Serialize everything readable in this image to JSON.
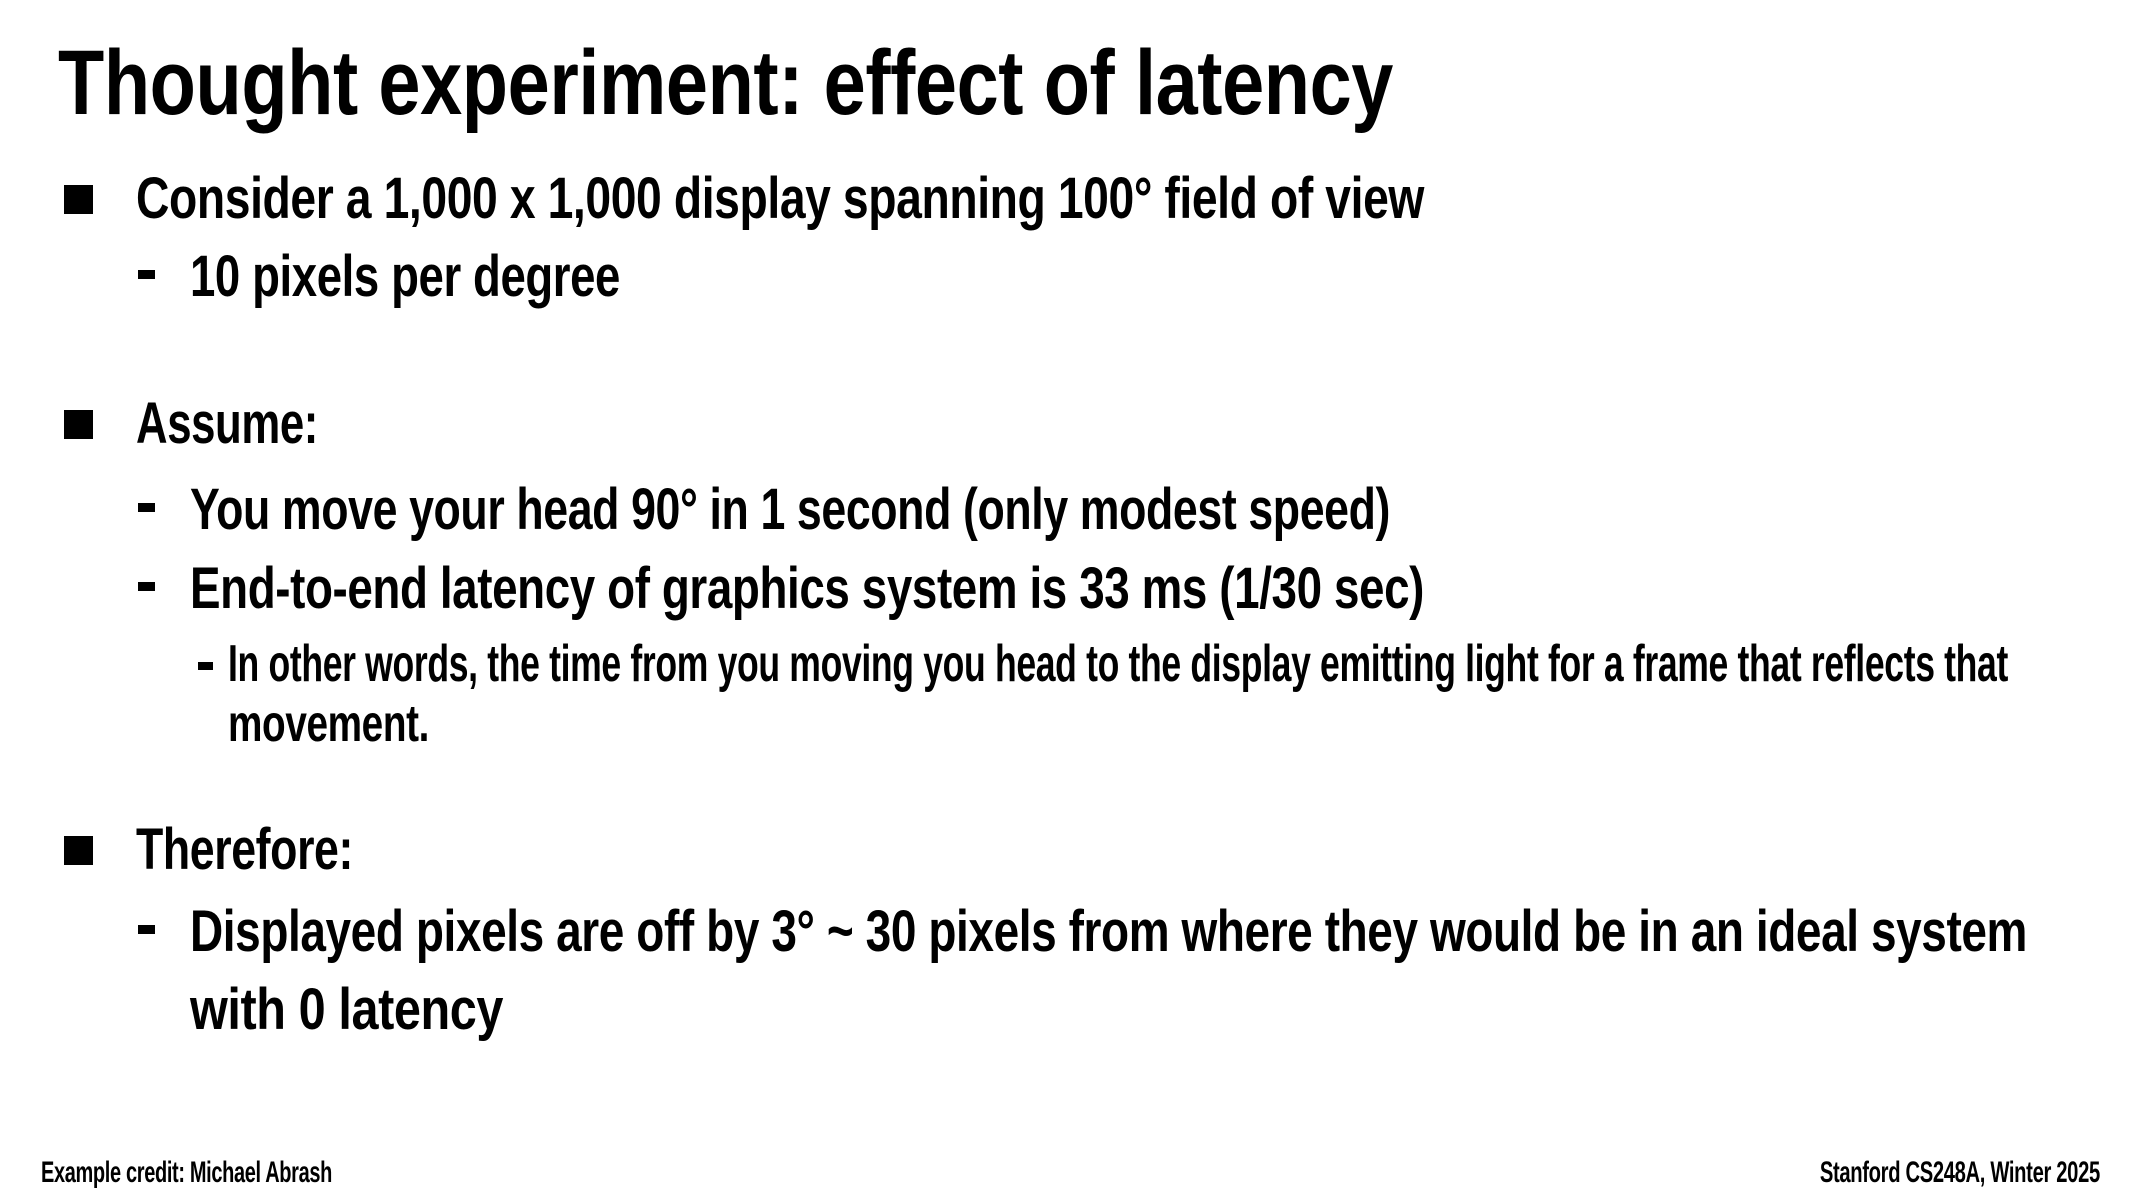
{
  "slide": {
    "title": "Thought experiment: effect of latency",
    "bullets": {
      "consider": "Consider a 1,000 x 1,000 display spanning 100° field of view",
      "pixels_per_degree": "10 pixels per degree",
      "assume": "Assume:",
      "head_move": "You move your head 90° in 1 second (only modest speed)",
      "latency": "End-to-end latency of graphics system is 33 ms (1/30 sec)",
      "in_other_words_line1": "In other words, the time from you moving you head to the display emitting light for a frame that reflects that",
      "in_other_words_line2": "movement.",
      "therefore": "Therefore:",
      "offset_line1": "Displayed pixels are off by 3° ~ 30 pixels from where they would be in an ideal system",
      "offset_line2": "with 0 latency"
    },
    "footer": {
      "credit": "Example credit: Michael Abrash",
      "course": "Stanford CS248A, Winter 2025"
    },
    "icons": {
      "level1_marker": "square-bullet",
      "level2_marker": "dash-bullet",
      "level3_marker": "dash-bullet"
    },
    "colors": {
      "background": "#ffffff",
      "text": "#000000"
    }
  }
}
